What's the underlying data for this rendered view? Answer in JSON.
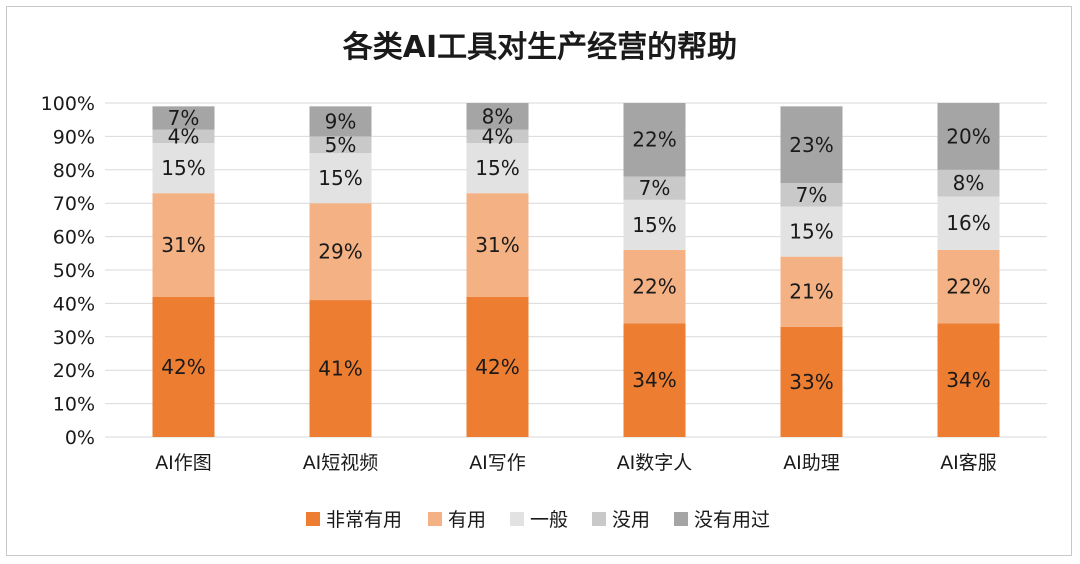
{
  "chart_data": {
    "type": "bar",
    "stacked": true,
    "percent_stacked": true,
    "title": "各类AI工具对生产经营的帮助",
    "xlabel": "",
    "ylabel": "",
    "ylim": [
      0,
      100
    ],
    "y_ticks": [
      "0%",
      "10%",
      "20%",
      "30%",
      "40%",
      "50%",
      "60%",
      "70%",
      "80%",
      "90%",
      "100%"
    ],
    "grid": true,
    "legend_position": "bottom",
    "categories": [
      "AI作图",
      "AI短视频",
      "AI写作",
      "AI数字人",
      "AI助理",
      "AI客服"
    ],
    "series": [
      {
        "name": "非常有用",
        "color": "#ed7d31",
        "values": [
          42,
          41,
          42,
          34,
          33,
          34
        ],
        "labels": [
          "42%",
          "41%",
          "42%",
          "34%",
          "33%",
          "34%"
        ]
      },
      {
        "name": "有用",
        "color": "#f4b183",
        "values": [
          31,
          29,
          31,
          22,
          21,
          22
        ],
        "labels": [
          "31%",
          "29%",
          "31%",
          "22%",
          "21%",
          "22%"
        ]
      },
      {
        "name": "一般",
        "color": "#e2e2e2",
        "values": [
          15,
          15,
          15,
          15,
          15,
          16
        ],
        "labels": [
          "15%",
          "15%",
          "15%",
          "15%",
          "15%",
          "16%"
        ]
      },
      {
        "name": "没用",
        "color": "#c9c9c9",
        "values": [
          4,
          5,
          4,
          7,
          7,
          8
        ],
        "labels": [
          "4%",
          "5%",
          "4%",
          "7%",
          "7%",
          "8%"
        ]
      },
      {
        "name": "没有用过",
        "color": "#a5a5a5",
        "values": [
          7,
          9,
          8,
          22,
          23,
          20
        ],
        "labels": [
          "7%",
          "9%",
          "8%",
          "22%",
          "23%",
          "20%"
        ]
      }
    ]
  }
}
